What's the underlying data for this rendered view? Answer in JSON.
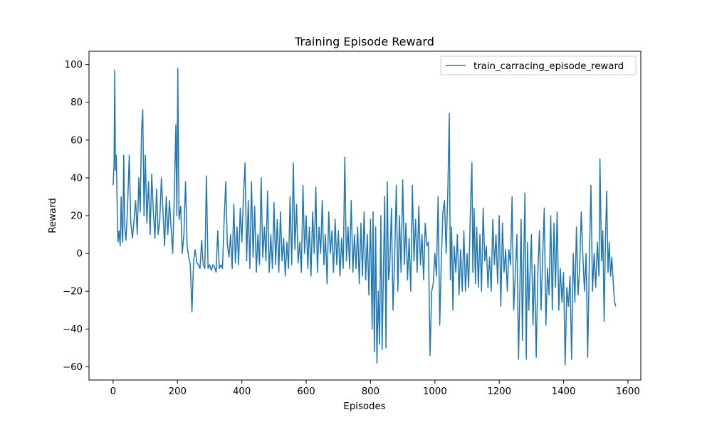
{
  "chart_data": {
    "type": "line",
    "title": "Training Episode Reward",
    "xlabel": "Episodes",
    "ylabel": "Reward",
    "xlim": [
      -75,
      1640
    ],
    "ylim": [
      -67,
      107
    ],
    "xticks": [
      0,
      200,
      400,
      600,
      800,
      1000,
      1200,
      1400,
      1600
    ],
    "yticks": [
      -60,
      -40,
      -20,
      0,
      20,
      40,
      60,
      80,
      100
    ],
    "grid": false,
    "legend_position": "top-right",
    "colors": {
      "series": "#1f77b4"
    },
    "series": [
      {
        "name": "train_carracing_episode_reward",
        "points": [
          [
            0,
            36
          ],
          [
            3,
            48
          ],
          [
            5,
            97
          ],
          [
            7,
            44
          ],
          [
            10,
            52
          ],
          [
            13,
            20
          ],
          [
            15,
            6
          ],
          [
            18,
            12
          ],
          [
            22,
            4
          ],
          [
            25,
            30
          ],
          [
            28,
            10
          ],
          [
            30,
            6
          ],
          [
            33,
            52
          ],
          [
            36,
            14
          ],
          [
            40,
            7
          ],
          [
            45,
            25
          ],
          [
            50,
            52
          ],
          [
            55,
            16
          ],
          [
            60,
            8
          ],
          [
            65,
            18
          ],
          [
            70,
            28
          ],
          [
            75,
            10
          ],
          [
            80,
            40
          ],
          [
            84,
            22
          ],
          [
            88,
            64
          ],
          [
            92,
            76
          ],
          [
            96,
            20
          ],
          [
            100,
            52
          ],
          [
            105,
            16
          ],
          [
            110,
            38
          ],
          [
            115,
            10
          ],
          [
            120,
            42
          ],
          [
            125,
            22
          ],
          [
            130,
            8
          ],
          [
            135,
            34
          ],
          [
            140,
            10
          ],
          [
            145,
            18
          ],
          [
            150,
            40
          ],
          [
            155,
            22
          ],
          [
            160,
            4
          ],
          [
            165,
            30
          ],
          [
            170,
            10
          ],
          [
            175,
            28
          ],
          [
            180,
            14
          ],
          [
            185,
            0
          ],
          [
            190,
            30
          ],
          [
            195,
            68
          ],
          [
            198,
            20
          ],
          [
            201,
            98
          ],
          [
            205,
            18
          ],
          [
            210,
            25
          ],
          [
            215,
            0
          ],
          [
            220,
            10
          ],
          [
            225,
            38
          ],
          [
            230,
            4
          ],
          [
            235,
            -2
          ],
          [
            240,
            -6
          ],
          [
            245,
            -31
          ],
          [
            250,
            -4
          ],
          [
            255,
            2
          ],
          [
            260,
            -5
          ],
          [
            265,
            -6
          ],
          [
            270,
            -8
          ],
          [
            275,
            7
          ],
          [
            280,
            -6
          ],
          [
            285,
            -8
          ],
          [
            290,
            41
          ],
          [
            295,
            -8
          ],
          [
            300,
            -6
          ],
          [
            305,
            -9
          ],
          [
            310,
            -6
          ],
          [
            315,
            -7
          ],
          [
            320,
            -10
          ],
          [
            325,
            12
          ],
          [
            330,
            -8
          ],
          [
            335,
            -6
          ],
          [
            340,
            -8
          ],
          [
            345,
            18
          ],
          [
            350,
            38
          ],
          [
            355,
            5
          ],
          [
            360,
            -2
          ],
          [
            365,
            10
          ],
          [
            370,
            -8
          ],
          [
            375,
            26
          ],
          [
            380,
            -5
          ],
          [
            385,
            14
          ],
          [
            390,
            -6
          ],
          [
            395,
            24
          ],
          [
            400,
            6
          ],
          [
            405,
            30
          ],
          [
            410,
            48
          ],
          [
            415,
            -4
          ],
          [
            420,
            28
          ],
          [
            425,
            -8
          ],
          [
            430,
            38
          ],
          [
            435,
            -2
          ],
          [
            440,
            25
          ],
          [
            445,
            -10
          ],
          [
            450,
            10
          ],
          [
            455,
            -6
          ],
          [
            460,
            40
          ],
          [
            465,
            -2
          ],
          [
            470,
            14
          ],
          [
            475,
            -4
          ],
          [
            480,
            33
          ],
          [
            485,
            -10
          ],
          [
            490,
            10
          ],
          [
            495,
            -8
          ],
          [
            500,
            27
          ],
          [
            505,
            -6
          ],
          [
            510,
            18
          ],
          [
            515,
            -10
          ],
          [
            520,
            22
          ],
          [
            525,
            -4
          ],
          [
            530,
            8
          ],
          [
            535,
            -12
          ],
          [
            540,
            6
          ],
          [
            545,
            -8
          ],
          [
            550,
            30
          ],
          [
            555,
            -6
          ],
          [
            560,
            48
          ],
          [
            565,
            2
          ],
          [
            570,
            26
          ],
          [
            575,
            -5
          ],
          [
            580,
            6
          ],
          [
            585,
            -10
          ],
          [
            590,
            36
          ],
          [
            595,
            0
          ],
          [
            600,
            20
          ],
          [
            605,
            -8
          ],
          [
            610,
            14
          ],
          [
            615,
            -12
          ],
          [
            620,
            22
          ],
          [
            625,
            0
          ],
          [
            630,
            35
          ],
          [
            635,
            -10
          ],
          [
            640,
            14
          ],
          [
            645,
            0
          ],
          [
            650,
            28
          ],
          [
            655,
            -6
          ],
          [
            660,
            10
          ],
          [
            665,
            -16
          ],
          [
            670,
            22
          ],
          [
            675,
            0
          ],
          [
            680,
            12
          ],
          [
            685,
            -10
          ],
          [
            690,
            18
          ],
          [
            695,
            -6
          ],
          [
            700,
            12
          ],
          [
            705,
            -12
          ],
          [
            710,
            8
          ],
          [
            715,
            -8
          ],
          [
            720,
            51
          ],
          [
            725,
            -4
          ],
          [
            730,
            14
          ],
          [
            735,
            -8
          ],
          [
            740,
            28
          ],
          [
            745,
            -10
          ],
          [
            750,
            10
          ],
          [
            755,
            -8
          ],
          [
            760,
            14
          ],
          [
            765,
            -16
          ],
          [
            770,
            16
          ],
          [
            775,
            -12
          ],
          [
            780,
            22
          ],
          [
            785,
            -14
          ],
          [
            790,
            10
          ],
          [
            795,
            -22
          ],
          [
            800,
            18
          ],
          [
            805,
            -40
          ],
          [
            808,
            22
          ],
          [
            812,
            -52
          ],
          [
            816,
            14
          ],
          [
            820,
            -58
          ],
          [
            824,
            -20
          ],
          [
            828,
            -48
          ],
          [
            832,
            20
          ],
          [
            836,
            -51
          ],
          [
            840,
            -10
          ],
          [
            844,
            30
          ],
          [
            848,
            -50
          ],
          [
            852,
            38
          ],
          [
            856,
            -14
          ],
          [
            860,
            -6
          ],
          [
            865,
            24
          ],
          [
            870,
            -30
          ],
          [
            875,
            -2
          ],
          [
            880,
            36
          ],
          [
            885,
            -20
          ],
          [
            890,
            20
          ],
          [
            895,
            -10
          ],
          [
            900,
            39
          ],
          [
            905,
            -6
          ],
          [
            910,
            16
          ],
          [
            915,
            -14
          ],
          [
            920,
            8
          ],
          [
            925,
            -20
          ],
          [
            930,
            36
          ],
          [
            935,
            -4
          ],
          [
            940,
            18
          ],
          [
            945,
            -10
          ],
          [
            950,
            25
          ],
          [
            955,
            -6
          ],
          [
            960,
            10
          ],
          [
            965,
            -14
          ],
          [
            970,
            16
          ],
          [
            975,
            4
          ],
          [
            980,
            6
          ],
          [
            985,
            -54
          ],
          [
            990,
            -20
          ],
          [
            995,
            -16
          ],
          [
            1000,
            0
          ],
          [
            1005,
            -12
          ],
          [
            1010,
            30
          ],
          [
            1015,
            -38
          ],
          [
            1020,
            -4
          ],
          [
            1025,
            22
          ],
          [
            1030,
            28
          ],
          [
            1035,
            0
          ],
          [
            1040,
            32
          ],
          [
            1045,
            74
          ],
          [
            1048,
            -14
          ],
          [
            1052,
            14
          ],
          [
            1056,
            -30
          ],
          [
            1060,
            4
          ],
          [
            1065,
            -10
          ],
          [
            1070,
            10
          ],
          [
            1075,
            -22
          ],
          [
            1080,
            2
          ],
          [
            1085,
            -20
          ],
          [
            1090,
            12
          ],
          [
            1095,
            -20
          ],
          [
            1100,
            0
          ],
          [
            1105,
            -18
          ],
          [
            1110,
            20
          ],
          [
            1115,
            48
          ],
          [
            1118,
            -10
          ],
          [
            1122,
            24
          ],
          [
            1126,
            -16
          ],
          [
            1130,
            14
          ],
          [
            1135,
            -18
          ],
          [
            1140,
            10
          ],
          [
            1145,
            -20
          ],
          [
            1150,
            24
          ],
          [
            1155,
            -4
          ],
          [
            1160,
            4
          ],
          [
            1165,
            -18
          ],
          [
            1170,
            -2
          ],
          [
            1175,
            -20
          ],
          [
            1180,
            18
          ],
          [
            1185,
            -6
          ],
          [
            1190,
            10
          ],
          [
            1195,
            -16
          ],
          [
            1200,
            20
          ],
          [
            1205,
            -28
          ],
          [
            1210,
            16
          ],
          [
            1215,
            -10
          ],
          [
            1220,
            2
          ],
          [
            1225,
            -20
          ],
          [
            1230,
            2
          ],
          [
            1235,
            -6
          ],
          [
            1240,
            30
          ],
          [
            1245,
            -30
          ],
          [
            1250,
            -10
          ],
          [
            1255,
            10
          ],
          [
            1260,
            -56
          ],
          [
            1264,
            -20
          ],
          [
            1268,
            18
          ],
          [
            1272,
            -46
          ],
          [
            1276,
            -4
          ],
          [
            1280,
            32
          ],
          [
            1284,
            -56
          ],
          [
            1288,
            6
          ],
          [
            1292,
            -30
          ],
          [
            1296,
            -10
          ],
          [
            1300,
            10
          ],
          [
            1305,
            -38
          ],
          [
            1310,
            -6
          ],
          [
            1315,
            -55
          ],
          [
            1320,
            -10
          ],
          [
            1325,
            12
          ],
          [
            1330,
            -30
          ],
          [
            1335,
            -2
          ],
          [
            1340,
            24
          ],
          [
            1345,
            -38
          ],
          [
            1350,
            -8
          ],
          [
            1355,
            -22
          ],
          [
            1360,
            20
          ],
          [
            1365,
            -30
          ],
          [
            1370,
            16
          ],
          [
            1375,
            -18
          ],
          [
            1380,
            22
          ],
          [
            1385,
            -30
          ],
          [
            1390,
            -8
          ],
          [
            1395,
            -26
          ],
          [
            1400,
            -10
          ],
          [
            1405,
            -59
          ],
          [
            1410,
            -18
          ],
          [
            1415,
            -28
          ],
          [
            1420,
            -12
          ],
          [
            1425,
            -56
          ],
          [
            1430,
            0
          ],
          [
            1435,
            -26
          ],
          [
            1440,
            14
          ],
          [
            1445,
            -22
          ],
          [
            1450,
            -8
          ],
          [
            1455,
            22
          ],
          [
            1460,
            -2
          ],
          [
            1465,
            -20
          ],
          [
            1470,
            0
          ],
          [
            1475,
            -55
          ],
          [
            1480,
            -4
          ],
          [
            1485,
            36
          ],
          [
            1490,
            -20
          ],
          [
            1495,
            0
          ],
          [
            1500,
            -18
          ],
          [
            1505,
            6
          ],
          [
            1510,
            -12
          ],
          [
            1513,
            50
          ],
          [
            1518,
            -4
          ],
          [
            1522,
            12
          ],
          [
            1526,
            -36
          ],
          [
            1530,
            6
          ],
          [
            1534,
            33
          ],
          [
            1538,
            -10
          ],
          [
            1542,
            6
          ],
          [
            1546,
            -12
          ],
          [
            1550,
            -2
          ],
          [
            1554,
            -14
          ],
          [
            1558,
            -25
          ],
          [
            1562,
            -28
          ]
        ]
      }
    ]
  }
}
